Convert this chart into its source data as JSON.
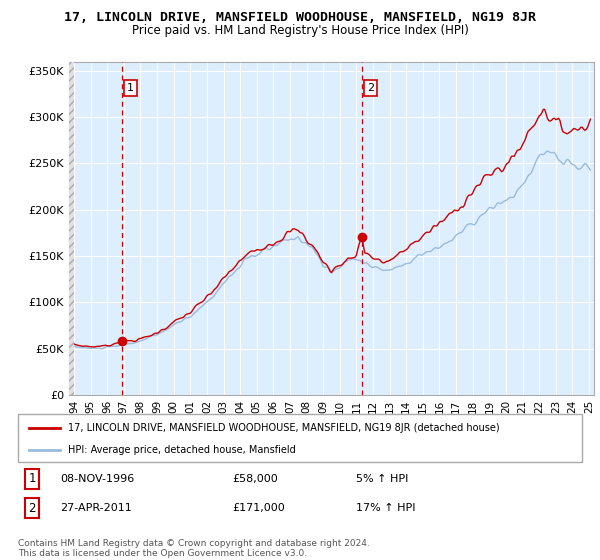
{
  "title": "17, LINCOLN DRIVE, MANSFIELD WOODHOUSE, MANSFIELD, NG19 8JR",
  "subtitle": "Price paid vs. HM Land Registry's House Price Index (HPI)",
  "legend_line1": "17, LINCOLN DRIVE, MANSFIELD WOODHOUSE, MANSFIELD, NG19 8JR (detached house)",
  "legend_line2": "HPI: Average price, detached house, Mansfield",
  "annotation1_date": "08-NOV-1996",
  "annotation1_price": "£58,000",
  "annotation1_pct": "5% ↑ HPI",
  "annotation2_date": "27-APR-2011",
  "annotation2_price": "£171,000",
  "annotation2_pct": "17% ↑ HPI",
  "footer": "Contains HM Land Registry data © Crown copyright and database right 2024.\nThis data is licensed under the Open Government Licence v3.0.",
  "ylim": [
    0,
    360000
  ],
  "yticks": [
    0,
    50000,
    100000,
    150000,
    200000,
    250000,
    300000,
    350000
  ],
  "property_color": "#cc0000",
  "hpi_color": "#99bbdd",
  "vline_color": "#cc0000",
  "chart_bg_color": "#ddeeff",
  "hatch_bg_color": "#e8e8e8",
  "point1_x": 1996.88,
  "point1_y": 58000,
  "point2_x": 2011.33,
  "point2_y": 171000,
  "xlim_left": 1993.7,
  "xlim_right": 2025.3,
  "hatch_end": 1994.0,
  "xticks": [
    1994,
    1995,
    1996,
    1997,
    1998,
    1999,
    2000,
    2001,
    2002,
    2003,
    2004,
    2005,
    2006,
    2007,
    2008,
    2009,
    2010,
    2011,
    2012,
    2013,
    2014,
    2015,
    2016,
    2017,
    2018,
    2019,
    2020,
    2021,
    2022,
    2023,
    2024,
    2025
  ]
}
